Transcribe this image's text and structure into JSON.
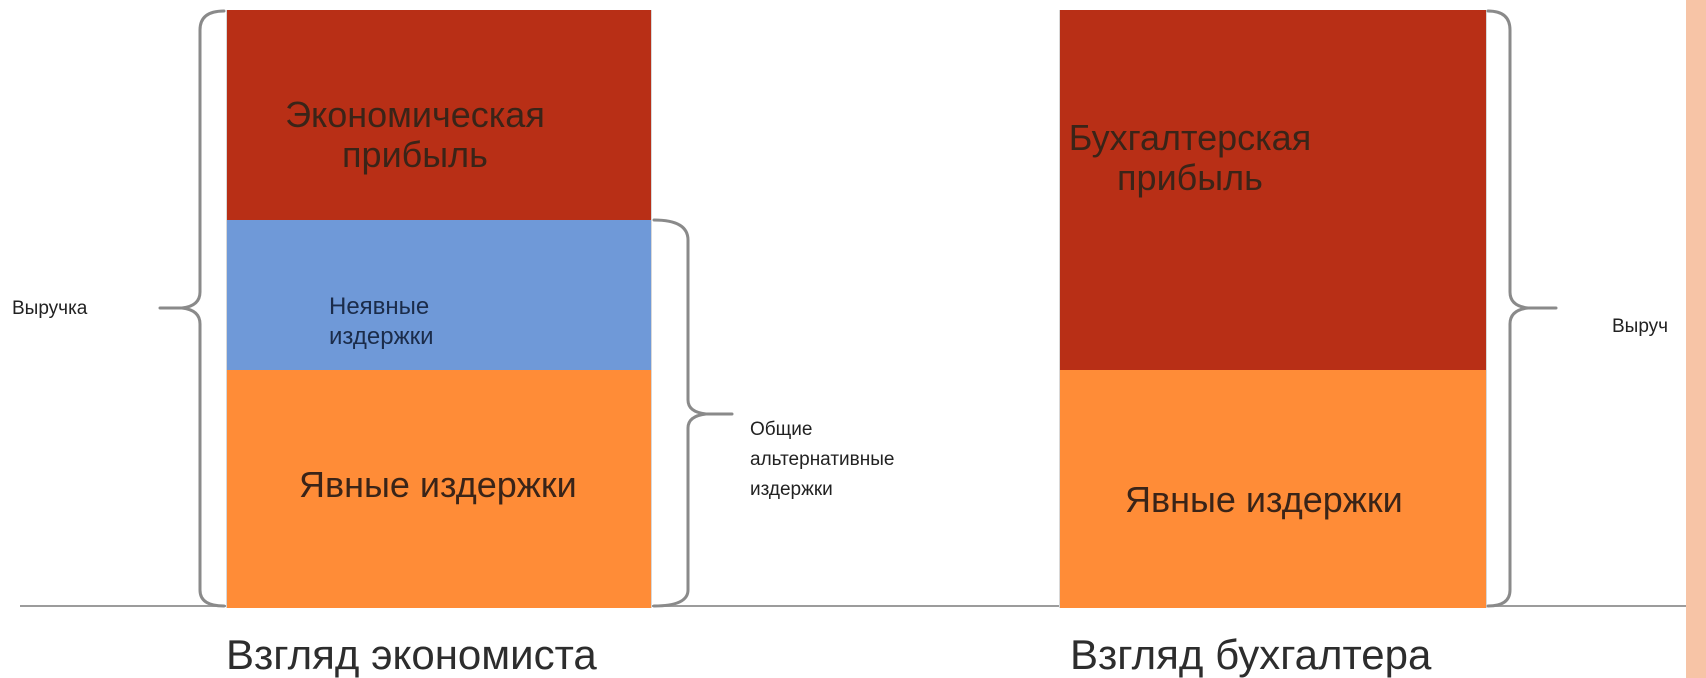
{
  "colors": {
    "profit": "#b82f16",
    "implicit_costs": "#6f99d8",
    "explicit_costs": "#ff8c37",
    "baseline": "#9c9c9c",
    "accent_stripe": "#f7c4a6"
  },
  "left_column": {
    "segments": [
      {
        "name": "economic-profit",
        "label": "Экономическая\nприбыль"
      },
      {
        "name": "implicit-costs",
        "label": "Неявные\nиздержки"
      },
      {
        "name": "explicit-costs",
        "label": "Явные издержки"
      }
    ],
    "caption": "Взгляд экономиста"
  },
  "right_column": {
    "segments": [
      {
        "name": "accounting-profit",
        "label": "Бухгалтерская\nприбыль"
      },
      {
        "name": "explicit-costs",
        "label": "Явные издержки"
      }
    ],
    "caption": "Взгляд бухгалтера"
  },
  "annotations": {
    "revenue_left": "Выручка",
    "total_opportunity_costs": "Общие\nальтернативные\nиздержки",
    "revenue_right": "Выруч"
  }
}
